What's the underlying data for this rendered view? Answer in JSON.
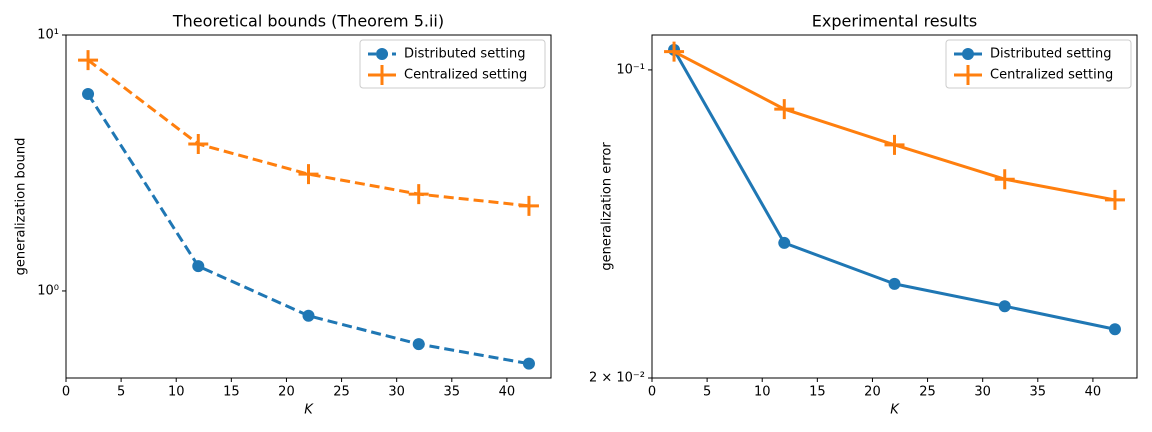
{
  "chart_data": [
    {
      "type": "line",
      "title": "Theoretical bounds (Theorem 5.ii)",
      "x_label": "K",
      "y_label": "generalization bound",
      "x": [
        2,
        12,
        22,
        32,
        42
      ],
      "xlim": [
        0,
        44
      ],
      "xticks": [
        0,
        5,
        10,
        15,
        20,
        25,
        30,
        35,
        40
      ],
      "ylim": [
        0.457,
        10
      ],
      "log_y": true,
      "yticks": [
        {
          "value": 1,
          "label": "10⁰"
        },
        {
          "value": 10,
          "label": "10¹"
        }
      ],
      "dashed": true,
      "legend": "upper right",
      "series": [
        {
          "name": "Distributed setting",
          "color": "#1f77b4",
          "marker": "circle",
          "values": [
            5.88,
            1.25,
            0.8,
            0.62,
            0.52
          ]
        },
        {
          "name": "Centralized setting",
          "color": "#ff7f0e",
          "marker": "plus",
          "values": [
            7.98,
            3.75,
            2.86,
            2.39,
            2.15
          ]
        }
      ]
    },
    {
      "type": "line",
      "title": "Experimental results",
      "x_label": "K",
      "y_label": "generalization error",
      "x": [
        2,
        12,
        22,
        32,
        42
      ],
      "xlim": [
        0,
        44
      ],
      "xticks": [
        0,
        5,
        10,
        15,
        20,
        25,
        30,
        35,
        40
      ],
      "ylim": [
        0.02,
        0.12
      ],
      "log_y": true,
      "yticks": [
        {
          "value": 0.02,
          "label": "2 × 10⁻²"
        },
        {
          "value": 0.1,
          "label": "10⁻¹"
        }
      ],
      "dashed": false,
      "legend": "upper right",
      "series": [
        {
          "name": "Distributed setting",
          "color": "#1f77b4",
          "marker": "circle",
          "values": [
            0.111,
            0.0405,
            0.0327,
            0.0291,
            0.0258
          ]
        },
        {
          "name": "Centralized setting",
          "color": "#ff7f0e",
          "marker": "plus",
          "values": [
            0.11,
            0.0815,
            0.0676,
            0.0565,
            0.0507
          ]
        }
      ]
    }
  ]
}
